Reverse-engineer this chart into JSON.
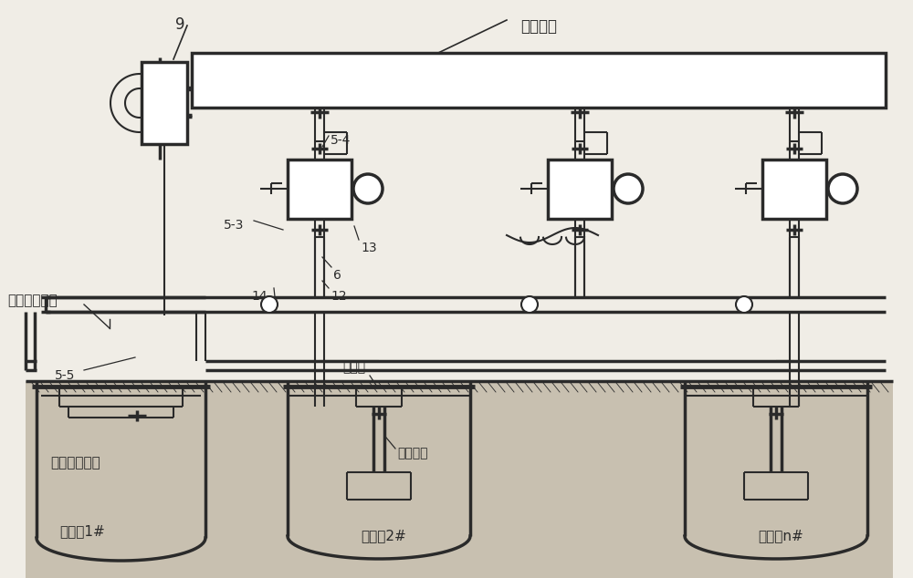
{
  "bg_color": "#f0ede6",
  "line_color": "#2a2a2a",
  "ground_color": "#c8c0b0",
  "lw": 1.5,
  "lw2": 2.5,
  "lw3": 3.5,
  "labels": {
    "pressure_pipe": "压力管路",
    "return_main": "回扬集水总管",
    "well1": "回灌乷1#",
    "well2": "回灌乷2#",
    "welln": "回灌乷n#",
    "seal": "井口密封部件",
    "pipe_material": "回灌管材",
    "air_vent": "排气孔",
    "label_9": "9",
    "label_54": "5-4",
    "label_53": "5-3",
    "label_55": "5-5",
    "label_6": "6",
    "label_12": "12",
    "label_13": "13",
    "label_14": "14"
  },
  "font_size": 12,
  "font_size_small": 11,
  "font_size_label": 10
}
